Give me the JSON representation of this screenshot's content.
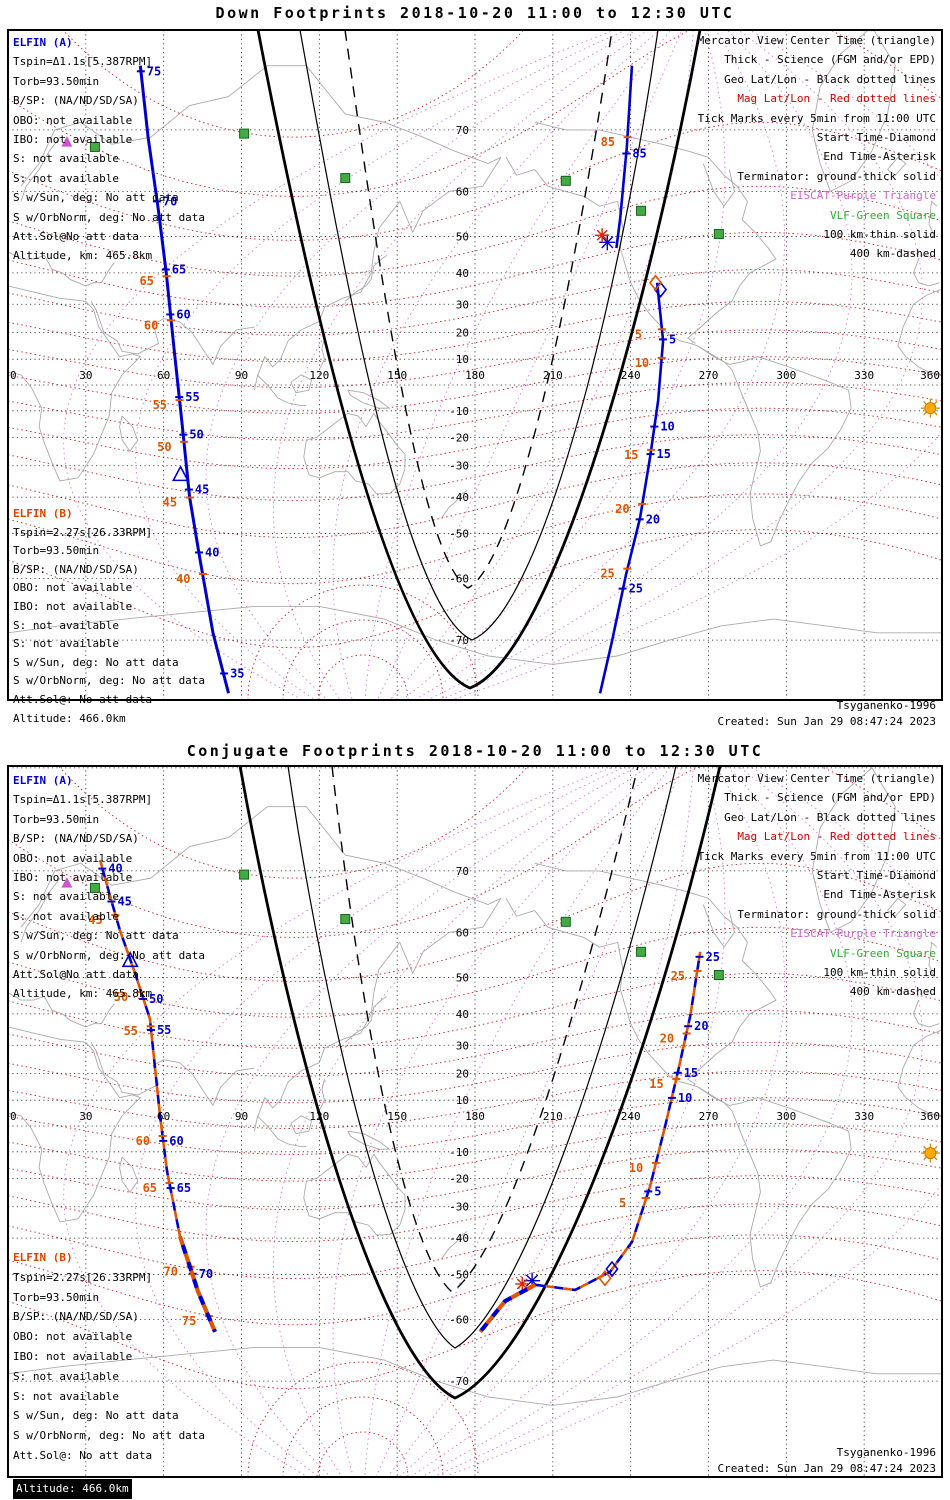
{
  "colors": {
    "elfin_a": "#0000cc",
    "elfin_b": "#e05500",
    "geo_grid": "#222222",
    "mag_lat": "#cc2222",
    "mag_lon": "#dd77dd",
    "coast": "#aaaaaa",
    "terminator": "#000000",
    "vlf_square": "#44aa44",
    "eiscat_triangle": "#cc55cc",
    "sun": "#ffaa00",
    "border": "#000000"
  },
  "legend": [
    {
      "text": "Mercator View Center Time (triangle)",
      "color": "#000000"
    },
    {
      "text": "Thick - Science (FGM and/or EPD)",
      "color": "#000000"
    },
    {
      "text": "Geo Lat/Lon - Black dotted lines",
      "color": "#000000"
    },
    {
      "text": "Mag Lat/Lon - Red dotted lines",
      "color": "#cc0000"
    },
    {
      "text": "Tick Marks every 5min from 11:00 UTC",
      "color": "#000000"
    },
    {
      "text": "Start Time-Diamond",
      "color": "#000000"
    },
    {
      "text": "End Time-Asterisk",
      "color": "#000000"
    },
    {
      "text": "Terminator: ground-thick solid",
      "color": "#000000"
    },
    {
      "text": "EISCAT-Purple Triangle",
      "color": "#cc66cc"
    },
    {
      "text": "VLF-Green Square",
      "color": "#33aa33"
    },
    {
      "text": "100 km-thin solid",
      "color": "#000000"
    },
    {
      "text": "400 km-dashed",
      "color": "#000000"
    }
  ],
  "panels": [
    {
      "title": "Down Footprints 2018-10-20 11:00 to 12:30 UTC",
      "elfin_a": {
        "header": "ELFIN (A)",
        "lines": [
          "Tspin=Δ1.1s[5.387RPM]",
          "Torb=93.50min",
          "B/SP: (NA/ND/SD/SA)",
          "OBO: not available",
          "IBO: not available",
          "S: not available",
          "S: not available",
          "S w/Sun, deg: No att data",
          "S w/OrbNorm, deg: No att data",
          "Att.Sol@No att data",
          "Altitude, km: 465.8km"
        ]
      },
      "elfin_b": {
        "header": "ELFIN (B)",
        "lines": [
          "Tspin=2.27s[26.33RPM]",
          "Torb=93.50min",
          "B/SP: (NA/ND/SD/SA)",
          "OBO: not available",
          "IBO: not available",
          "S: not available",
          "S: not available",
          "S w/Sun, deg: No att data",
          "S w/OrbNorm, deg: No att data",
          "Att.Sol@: No att data",
          "Altitude: 466.0km"
        ]
      },
      "credit_model": "Tsyganenko-1996",
      "credit_created": "Created: Sun Jan 29 08:47:24 2023"
    },
    {
      "title": "Conjugate Footprints 2018-10-20 11:00 to 12:30 UTC",
      "elfin_a": {
        "header": "ELFIN (A)",
        "lines": [
          "Tspin=Δ1.1s[5.387RPM]",
          "Torb=93.50min",
          "B/SP: (NA/ND/SD/SA)",
          "OBO: not available",
          "IBO: not available",
          "S: not available",
          "S: not available",
          "S w/Sun, deg: No att data",
          "S w/OrbNorm, deg: No att data",
          "Att.Sol@No att data",
          "Altitude, km: 465.8km"
        ]
      },
      "elfin_b": {
        "header": "ELFIN (B)",
        "lines": [
          "Tspin=2.27s[26.33RPM]",
          "Torb=93.50min",
          "B/SP: (NA/ND/SD/SA)",
          "OBO: not available",
          "IBO: not available",
          "S: not available",
          "S: not available",
          "S w/Sun, deg: No att data",
          "S w/OrbNorm, deg: No att data",
          "Att.Sol@: No att data",
          "Altitude: 466.0km"
        ]
      },
      "credit_model": "Tsyganenko-1996",
      "credit_created": "Created: Sun Jan 29 08:47:24 2023"
    }
  ],
  "chart_data": [
    {
      "type": "map-tracks",
      "panel": "down",
      "title": "Down Footprints 2018-10-20 11:00 to 12:30 UTC",
      "projection": "mercator",
      "model": "Tsyganenko-1996",
      "tick_interval_min": 5,
      "start_time": "11:00 UTC",
      "end_time": "12:30 UTC",
      "lon_range": [
        0,
        360
      ],
      "lon_ticks": [
        0,
        30,
        60,
        90,
        120,
        150,
        180,
        210,
        240,
        270,
        300,
        330,
        360
      ],
      "lat_ticks": [
        70,
        60,
        50,
        40,
        30,
        20,
        10,
        -10,
        -20,
        -30,
        -40,
        -50,
        -60,
        -70
      ],
      "tracks": [
        {
          "name": "elfin-ab-left-pass",
          "style": "solid",
          "width": 3,
          "points": [
            [
              51,
              77
            ],
            [
              54,
              69
            ],
            [
              58,
              56
            ],
            [
              61,
              40
            ],
            [
              64,
              14
            ],
            [
              67,
              -14
            ],
            [
              70,
              -40
            ],
            [
              74,
              -56
            ],
            [
              79,
              -69
            ],
            [
              85,
              -76
            ]
          ],
          "ticks_a": [
            [
              "75",
              76.5
            ],
            [
              "70",
              58
            ],
            [
              "65",
              41
            ],
            [
              "60",
              26.5
            ],
            [
              "55",
              -4.7
            ],
            [
              "50",
              -19
            ],
            [
              "45",
              -37.7
            ],
            [
              "40",
              -54.5
            ],
            [
              "35",
              -74
            ]
          ],
          "ticks_b": [
            [
              "65",
              39
            ],
            [
              "60",
              24.4
            ],
            [
              "55",
              -5.9
            ],
            [
              "50",
              -21.6
            ],
            [
              "45",
              -40.1
            ],
            [
              "40",
              -59.1
            ]
          ],
          "center_triangle": [
            66.5,
            -33
          ]
        },
        {
          "name": "elfin-ab-right-pass-end",
          "style": "solid",
          "width": 2.6,
          "points": [
            [
              240.5,
              77
            ],
            [
              238.5,
              67.5
            ],
            [
              236,
              54.5
            ],
            [
              234.5,
              47
            ]
          ],
          "ticks_a": [
            [
              "85",
              66.6
            ]
          ],
          "ticks_b": [
            [
              "85",
              69
            ]
          ],
          "asterisk_a": [
            231,
            48.5
          ],
          "asterisk_b": [
            229,
            50.3
          ]
        },
        {
          "name": "elfin-ab-right-pass-start",
          "style": "solid",
          "width": 2.6,
          "points": [
            [
              250.2,
              37
            ],
            [
              252.5,
              17
            ],
            [
              250.6,
              -6
            ],
            [
              247.5,
              -27
            ],
            [
              243.6,
              -46
            ],
            [
              238.3,
              -59
            ],
            [
              232.9,
              -70
            ],
            [
              228.2,
              -76
            ]
          ],
          "ticks_a": [
            [
              "5",
              17.5
            ],
            [
              "10",
              -16
            ],
            [
              "15",
              -26
            ],
            [
              "20",
              -46.3
            ],
            [
              "25",
              -61.9
            ]
          ],
          "ticks_b": [
            [
              "5",
              21.2
            ],
            [
              "10",
              10.5
            ],
            [
              "15",
              -24.5
            ],
            [
              "20",
              -42
            ],
            [
              "25",
              -58
            ]
          ],
          "diamond_a": [
            251.5,
            34.8
          ],
          "diamond_b": [
            249.6,
            37
          ]
        }
      ],
      "stations_vlf": [
        [
          33.5,
          67.6
        ],
        [
          91,
          69.5
        ],
        [
          130,
          62.5
        ],
        [
          215,
          62
        ],
        [
          244,
          56
        ],
        [
          274,
          50.6
        ]
      ],
      "station_eiscat": [
        22.7,
        68.3
      ],
      "sun": [
        355.5,
        -9
      ]
    },
    {
      "type": "map-tracks",
      "panel": "conjugate",
      "title": "Conjugate Footprints 2018-10-20 11:00 to 12:30 UTC",
      "projection": "mercator",
      "model": "Tsyganenko-1996",
      "tick_interval_min": 5,
      "start_time": "11:00 UTC",
      "end_time": "12:30 UTC",
      "lon_range": [
        0,
        360
      ],
      "lon_ticks": [
        0,
        30,
        60,
        90,
        120,
        150,
        180,
        210,
        240,
        270,
        300,
        330,
        360
      ],
      "lat_ticks": [
        70,
        60,
        50,
        40,
        30,
        20,
        10,
        -10,
        -20,
        -30,
        -40,
        -50,
        -60,
        -70
      ],
      "tracks": [
        {
          "name": "elfin-ab-left-conjugate",
          "style": "dashed",
          "width": 2.6,
          "points": [
            [
              35.5,
              71.4
            ],
            [
              39.3,
              66.4
            ],
            [
              43.2,
              60.3
            ],
            [
              49,
              51
            ],
            [
              54.7,
              38.5
            ],
            [
              58.6,
              4
            ],
            [
              61.3,
              -17.4
            ],
            [
              66.3,
              -39.5
            ],
            [
              73.2,
              -54
            ],
            [
              79.8,
              -62.3
            ]
          ],
          "ticks_a": [
            [
              "40",
              70.3
            ],
            [
              "45",
              65.5
            ],
            [
              "50",
              44.3
            ],
            [
              "55",
              35
            ],
            [
              "60",
              -5.8
            ],
            [
              "65",
              -23.5
            ],
            [
              "70",
              -49.8
            ]
          ],
          "ticks_b": [
            [
              "45",
              63.2
            ],
            [
              "50",
              46.2
            ],
            [
              "55",
              36.2
            ],
            [
              "60",
              -3.9
            ],
            [
              "65",
              -21.7
            ],
            [
              "70",
              -48
            ],
            [
              "75",
              -59.3
            ]
          ],
          "center_triangle": [
            47.1,
            54
          ]
        },
        {
          "name": "elfin-ab-left-conjugate-science",
          "style": "dashed",
          "width": 4.2,
          "points": [
            [
              66.3,
              -39.5
            ],
            [
              73.2,
              -54
            ],
            [
              79.8,
              -62.3
            ]
          ]
        },
        {
          "name": "elfin-ab-right-conjugate",
          "style": "dashed",
          "width": 2.6,
          "points": [
            [
              266.8,
              56
            ],
            [
              263,
              39.5
            ],
            [
              258.3,
              21
            ],
            [
              253.3,
              0
            ],
            [
              247.5,
              -22.8
            ],
            [
              240.6,
              -41
            ],
            [
              232.1,
              -49.3
            ],
            [
              218.6,
              -53.7
            ],
            [
              203.2,
              -52.5
            ]
          ],
          "ticks_a": [
            [
              "25",
              54.9
            ],
            [
              "20",
              36.2
            ],
            [
              "15",
              20.3
            ],
            [
              "10",
              10.9
            ],
            [
              "5",
              -24.7
            ]
          ],
          "ticks_b": [
            [
              "25",
              51.6
            ],
            [
              "20",
              33.9
            ],
            [
              "15",
              18
            ],
            [
              "10",
              -14.2
            ],
            [
              "5",
              -27
            ]
          ],
          "diamond_a": [
            232.8,
            -48.6
          ],
          "diamond_b": [
            230.1,
            -50.9
          ],
          "asterisk_a": [
            202,
            -51.5
          ],
          "asterisk_b": [
            198.2,
            -52.3
          ]
        },
        {
          "name": "elfin-ab-right-conjugate-science",
          "style": "dashed",
          "width": 4.2,
          "points": [
            [
              203.2,
              -52.5
            ],
            [
              191.6,
              -56.2
            ],
            [
              182,
              -62.3
            ]
          ]
        }
      ],
      "stations_vlf": [
        [
          33.5,
          67.6
        ],
        [
          91,
          69.5
        ],
        [
          130,
          62.5
        ],
        [
          215,
          62
        ],
        [
          244,
          56
        ],
        [
          274,
          50.6
        ]
      ],
      "station_eiscat": [
        22.7,
        68.3
      ],
      "sun": [
        355.5,
        -10.5
      ]
    }
  ]
}
